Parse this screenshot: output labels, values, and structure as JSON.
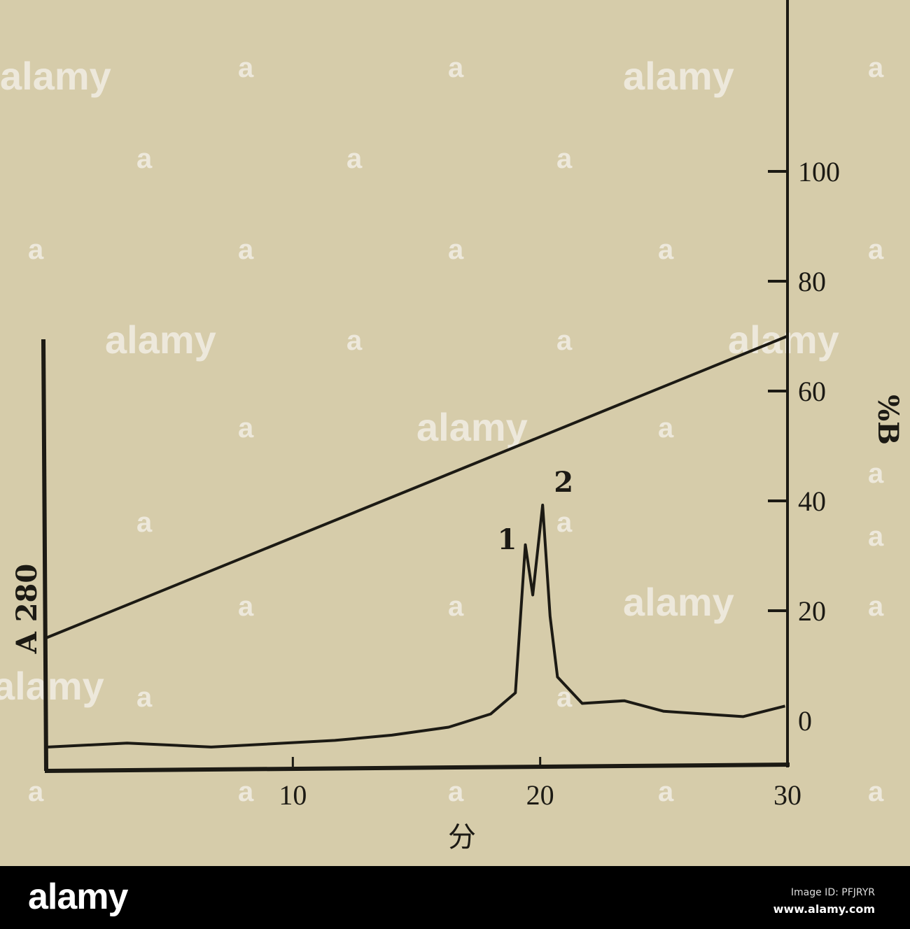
{
  "chart_data": {
    "type": "line",
    "title": "",
    "xlabel": "分",
    "ylabel_left": "A 280",
    "ylabel_right": "%B",
    "xlim": [
      0,
      30
    ],
    "x_ticks": [
      10,
      20,
      30
    ],
    "y_right_lim": [
      0,
      100
    ],
    "y_right_ticks": [
      0,
      20,
      40,
      60,
      80,
      100
    ],
    "grid": false,
    "series": [
      {
        "role": "A280 absorbance trace (relative, unscaled axis)",
        "x": [
          0.1,
          3.3,
          6.7,
          11.7,
          14.0,
          16.3,
          18.0,
          19.0,
          19.4,
          19.7,
          20.1,
          20.4,
          20.7,
          21.7,
          23.4,
          25.0,
          28.2,
          29.9
        ],
        "y": [
          0.085,
          0.1,
          0.085,
          0.11,
          0.13,
          0.16,
          0.21,
          0.29,
          0.85,
          0.66,
          1.0,
          0.58,
          0.35,
          0.25,
          0.26,
          0.22,
          0.2,
          0.24
        ]
      },
      {
        "role": "%B gradient",
        "x": [
          0,
          30
        ],
        "y": [
          15,
          70
        ]
      }
    ],
    "annotations": [
      {
        "text": "1",
        "x": 19.4
      },
      {
        "text": "2",
        "x": 20.1
      }
    ]
  },
  "watermark": {
    "text": "alamy",
    "mark": "a"
  },
  "banner": {
    "logo": "alamy",
    "image_id": "Image ID: PFJRYR",
    "url": "www.alamy.com"
  },
  "colors": {
    "paper": "#d6ccaa",
    "ink": "#1c1a14",
    "banner": "#000000"
  }
}
